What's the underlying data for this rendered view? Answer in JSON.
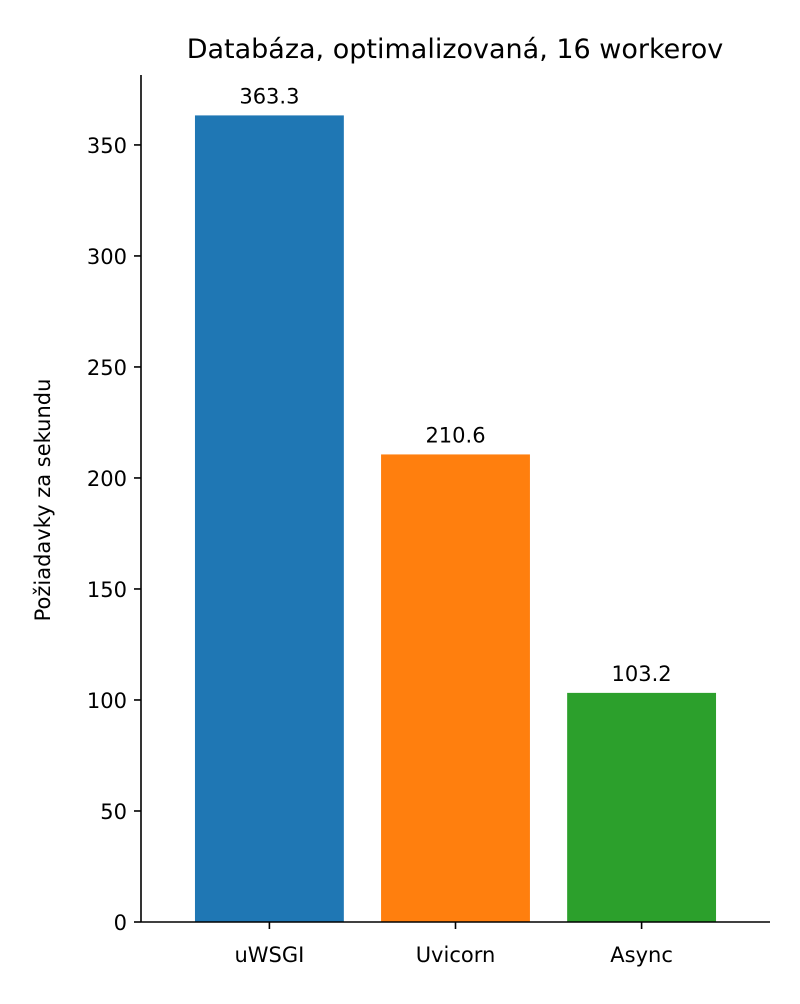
{
  "chart_data": {
    "type": "bar",
    "title": "Databáza, optimalizovaná, 16 workerov",
    "xlabel": "",
    "ylabel": "Požiadavky za sekundu",
    "categories": [
      "uWSGI",
      "Uvicorn",
      "Async"
    ],
    "values": [
      363.3,
      210.6,
      103.2
    ],
    "value_labels": [
      "363.3",
      "210.6",
      "103.2"
    ],
    "colors": [
      "#1f77b4",
      "#ff7f0e",
      "#2ca02c"
    ],
    "ylim": [
      0,
      381.5
    ],
    "yticks": [
      0,
      50,
      100,
      150,
      200,
      250,
      300,
      350
    ],
    "ytick_labels": [
      "0",
      "50",
      "100",
      "150",
      "200",
      "250",
      "300",
      "350"
    ],
    "grid": false,
    "legend": "none",
    "spines": [
      "left",
      "bottom"
    ]
  }
}
